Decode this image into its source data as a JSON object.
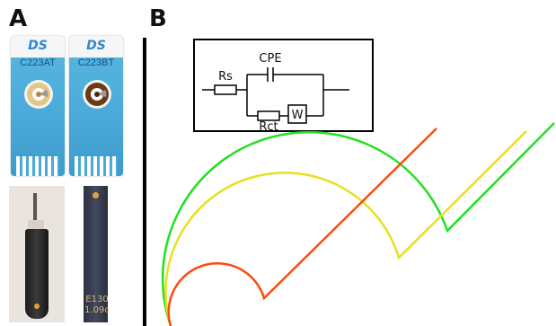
{
  "panels": {
    "a_label": "A",
    "b_label": "B"
  },
  "strips": [
    {
      "logo": "DS",
      "model": "C223AT",
      "electrode_colors": {
        "outer": "#e2c789",
        "inner": "#ffffff",
        "ring": "#b48a3c"
      }
    },
    {
      "logo": "DS",
      "model": "C223BT",
      "electrode_colors": {
        "outer": "#6b3a17",
        "inner": "#ffffff",
        "ring": "#4a2510"
      }
    }
  ],
  "sensor_photo": {
    "line1": "E130",
    "line2": "1.09c"
  },
  "circuit": {
    "labels": {
      "rs": "Rs",
      "cpe": "CPE",
      "rct": "Rct",
      "w": "W"
    }
  },
  "nyquist": {
    "colors": {
      "red": "#ff4a12",
      "yellow": "#e8e020",
      "green": "#22e022"
    }
  }
}
